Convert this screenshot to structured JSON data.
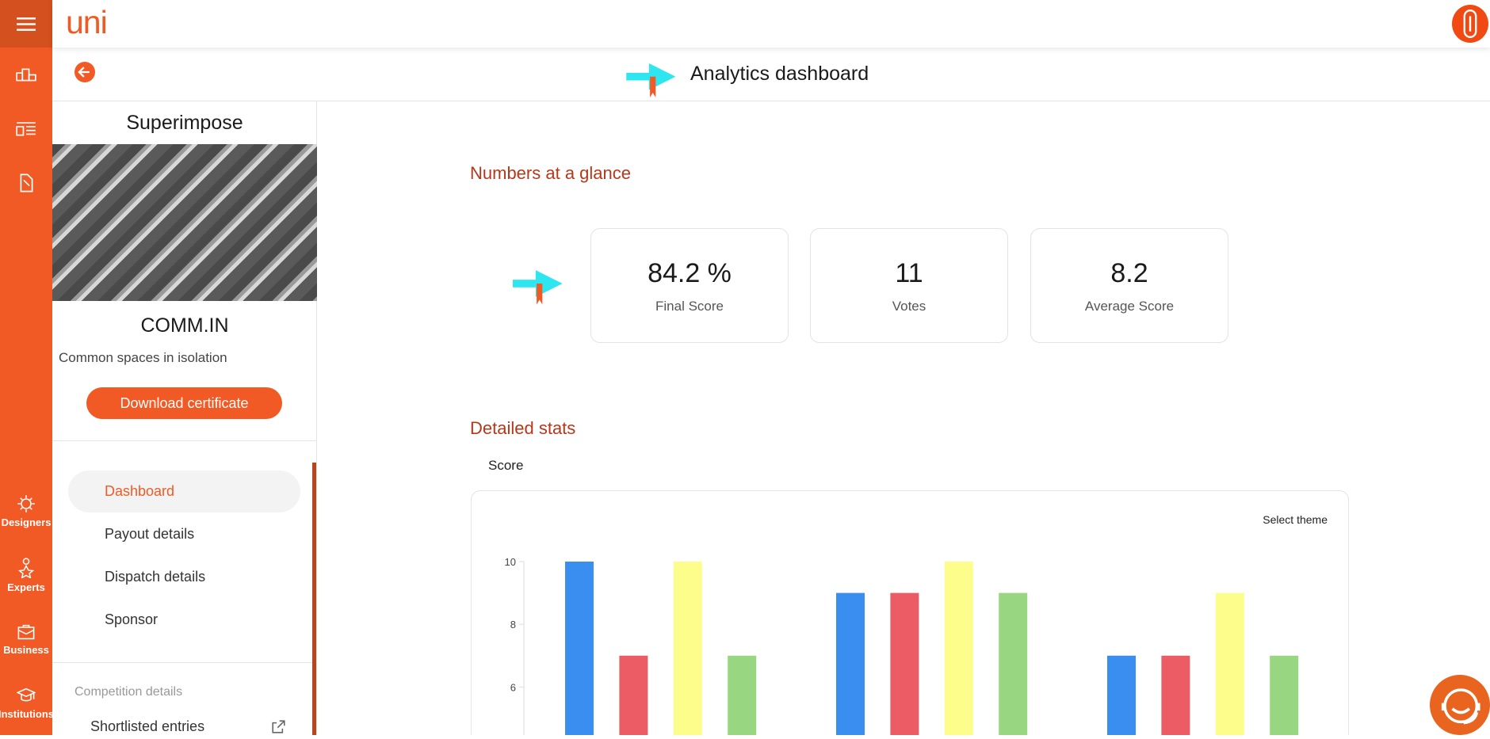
{
  "app": {
    "logo": "uni",
    "menu_icon": "hamburger-icon",
    "profile_icon": "paperclip-icon",
    "support_icon": "headset-support-icon"
  },
  "rail": {
    "items": [
      {
        "label": "",
        "icon": "podium-icon"
      },
      {
        "label": "",
        "icon": "layout-list-icon"
      },
      {
        "label": "",
        "icon": "edit-document-icon"
      },
      {
        "label": "Designers",
        "icon": "designer-idea-icon"
      },
      {
        "label": "Experts",
        "icon": "expert-star-icon"
      },
      {
        "label": "Business",
        "icon": "briefcase-icon"
      },
      {
        "label": "Institutions",
        "icon": "graduation-cap-icon"
      }
    ]
  },
  "header": {
    "title": "Analytics dashboard",
    "back_icon": "arrow-left-icon"
  },
  "entry": {
    "competition": "Superimpose",
    "name": "COMM.IN",
    "subtitle": "Common spaces in isolation",
    "download_label": "Download certificate"
  },
  "nav": {
    "items": [
      {
        "label": "Dashboard",
        "active": true
      },
      {
        "label": "Payout details"
      },
      {
        "label": "Dispatch details"
      },
      {
        "label": "Sponsor"
      }
    ],
    "section_label": "Competition details",
    "shortlisted": "Shortlisted entries"
  },
  "glance": {
    "title": "Numbers at a glance",
    "cards": [
      {
        "value": "84.2 %",
        "label": "Final Score"
      },
      {
        "value": "11",
        "label": "Votes"
      },
      {
        "value": "8.2",
        "label": "Average Score"
      }
    ]
  },
  "stats": {
    "title": "Detailed stats",
    "tab": "Score",
    "select_theme": "Select theme"
  },
  "colors": {
    "brand": "#f15a24",
    "brand_dark": "#d4501f",
    "section": "#b5381a",
    "cyan": "#2ee6ef"
  },
  "chart_data": {
    "type": "bar",
    "ylim": [
      0,
      10
    ],
    "yticks": [
      0,
      2,
      4,
      6,
      8,
      10
    ],
    "series": [
      {
        "color": "#398ef0",
        "values": [
          10,
          9,
          7
        ]
      },
      {
        "color": "#eb5c64",
        "values": [
          7,
          9,
          7
        ]
      },
      {
        "color": "#fdfd8c",
        "values": [
          10,
          10,
          9
        ]
      },
      {
        "color": "#98d682",
        "values": [
          7,
          9,
          7
        ]
      }
    ]
  }
}
